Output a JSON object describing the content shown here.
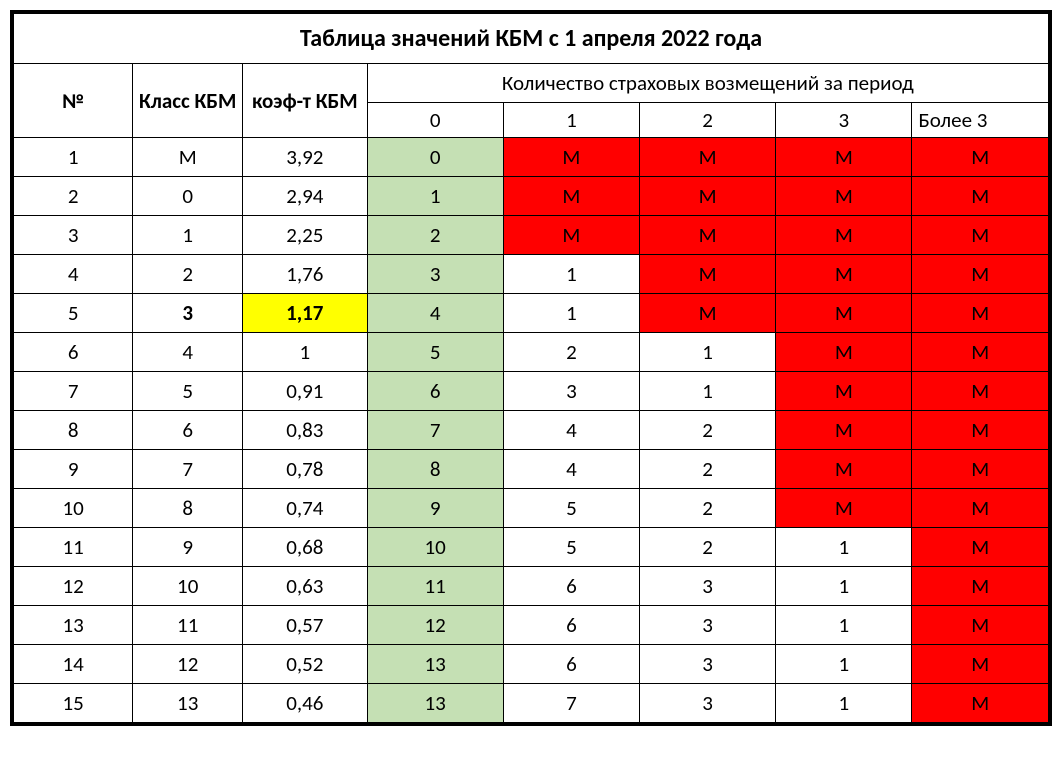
{
  "title": "Таблица значений КБМ с 1 апреля 2022 года",
  "headers": {
    "num": "№",
    "class": "Класс КБМ",
    "coef": "коэф-т КБМ",
    "group": "Количество страховых возмещений за период",
    "sub": [
      "0",
      "1",
      "2",
      "3",
      "Более 3"
    ]
  },
  "colors": {
    "green": "#c5e0b4",
    "red": "#ff0000",
    "yellow": "#ffff00",
    "border": "#000000",
    "background": "#ffffff"
  },
  "highlightRow": 5,
  "rows": [
    {
      "num": "1",
      "class": "М",
      "coef": "3,92",
      "cells": [
        {
          "v": "0",
          "c": "green"
        },
        {
          "v": "М",
          "c": "red"
        },
        {
          "v": "М",
          "c": "red"
        },
        {
          "v": "М",
          "c": "red"
        },
        {
          "v": "М",
          "c": "red"
        }
      ]
    },
    {
      "num": "2",
      "class": "0",
      "coef": "2,94",
      "cells": [
        {
          "v": "1",
          "c": "green"
        },
        {
          "v": "М",
          "c": "red"
        },
        {
          "v": "М",
          "c": "red"
        },
        {
          "v": "М",
          "c": "red"
        },
        {
          "v": "М",
          "c": "red"
        }
      ]
    },
    {
      "num": "3",
      "class": "1",
      "coef": "2,25",
      "cells": [
        {
          "v": "2",
          "c": "green"
        },
        {
          "v": "М",
          "c": "red"
        },
        {
          "v": "М",
          "c": "red"
        },
        {
          "v": "М",
          "c": "red"
        },
        {
          "v": "М",
          "c": "red"
        }
      ]
    },
    {
      "num": "4",
      "class": "2",
      "coef": "1,76",
      "cells": [
        {
          "v": "3",
          "c": "green"
        },
        {
          "v": "1",
          "c": "white"
        },
        {
          "v": "М",
          "c": "red"
        },
        {
          "v": "М",
          "c": "red"
        },
        {
          "v": "М",
          "c": "red"
        }
      ]
    },
    {
      "num": "5",
      "class": "3",
      "coef": "1,17",
      "cells": [
        {
          "v": "4",
          "c": "green"
        },
        {
          "v": "1",
          "c": "white"
        },
        {
          "v": "М",
          "c": "red"
        },
        {
          "v": "М",
          "c": "red"
        },
        {
          "v": "М",
          "c": "red"
        }
      ]
    },
    {
      "num": "6",
      "class": "4",
      "coef": "1",
      "cells": [
        {
          "v": "5",
          "c": "green"
        },
        {
          "v": "2",
          "c": "white"
        },
        {
          "v": "1",
          "c": "white"
        },
        {
          "v": "М",
          "c": "red"
        },
        {
          "v": "М",
          "c": "red"
        }
      ]
    },
    {
      "num": "7",
      "class": "5",
      "coef": "0,91",
      "cells": [
        {
          "v": "6",
          "c": "green"
        },
        {
          "v": "3",
          "c": "white"
        },
        {
          "v": "1",
          "c": "white"
        },
        {
          "v": "М",
          "c": "red"
        },
        {
          "v": "М",
          "c": "red"
        }
      ]
    },
    {
      "num": "8",
      "class": "6",
      "coef": "0,83",
      "cells": [
        {
          "v": "7",
          "c": "green"
        },
        {
          "v": "4",
          "c": "white"
        },
        {
          "v": "2",
          "c": "white"
        },
        {
          "v": "М",
          "c": "red"
        },
        {
          "v": "М",
          "c": "red"
        }
      ]
    },
    {
      "num": "9",
      "class": "7",
      "coef": "0,78",
      "cells": [
        {
          "v": "8",
          "c": "green"
        },
        {
          "v": "4",
          "c": "white"
        },
        {
          "v": "2",
          "c": "white"
        },
        {
          "v": "М",
          "c": "red"
        },
        {
          "v": "М",
          "c": "red"
        }
      ]
    },
    {
      "num": "10",
      "class": "8",
      "coef": "0,74",
      "cells": [
        {
          "v": "9",
          "c": "green"
        },
        {
          "v": "5",
          "c": "white"
        },
        {
          "v": "2",
          "c": "white"
        },
        {
          "v": "М",
          "c": "red"
        },
        {
          "v": "М",
          "c": "red"
        }
      ]
    },
    {
      "num": "11",
      "class": "9",
      "coef": "0,68",
      "cells": [
        {
          "v": "10",
          "c": "green"
        },
        {
          "v": "5",
          "c": "white"
        },
        {
          "v": "2",
          "c": "white"
        },
        {
          "v": "1",
          "c": "white"
        },
        {
          "v": "М",
          "c": "red"
        }
      ]
    },
    {
      "num": "12",
      "class": "10",
      "coef": "0,63",
      "cells": [
        {
          "v": "11",
          "c": "green"
        },
        {
          "v": "6",
          "c": "white"
        },
        {
          "v": "3",
          "c": "white"
        },
        {
          "v": "1",
          "c": "white"
        },
        {
          "v": "М",
          "c": "red"
        }
      ]
    },
    {
      "num": "13",
      "class": "11",
      "coef": "0,57",
      "cells": [
        {
          "v": "12",
          "c": "green"
        },
        {
          "v": "6",
          "c": "white"
        },
        {
          "v": "3",
          "c": "white"
        },
        {
          "v": "1",
          "c": "white"
        },
        {
          "v": "М",
          "c": "red"
        }
      ]
    },
    {
      "num": "14",
      "class": "12",
      "coef": "0,52",
      "cells": [
        {
          "v": "13",
          "c": "green"
        },
        {
          "v": "6",
          "c": "white"
        },
        {
          "v": "3",
          "c": "white"
        },
        {
          "v": "1",
          "c": "white"
        },
        {
          "v": "М",
          "c": "red"
        }
      ]
    },
    {
      "num": "15",
      "class": "13",
      "coef": "0,46",
      "cells": [
        {
          "v": "13",
          "c": "green"
        },
        {
          "v": "7",
          "c": "white"
        },
        {
          "v": "3",
          "c": "white"
        },
        {
          "v": "1",
          "c": "white"
        },
        {
          "v": "М",
          "c": "red"
        }
      ]
    }
  ]
}
